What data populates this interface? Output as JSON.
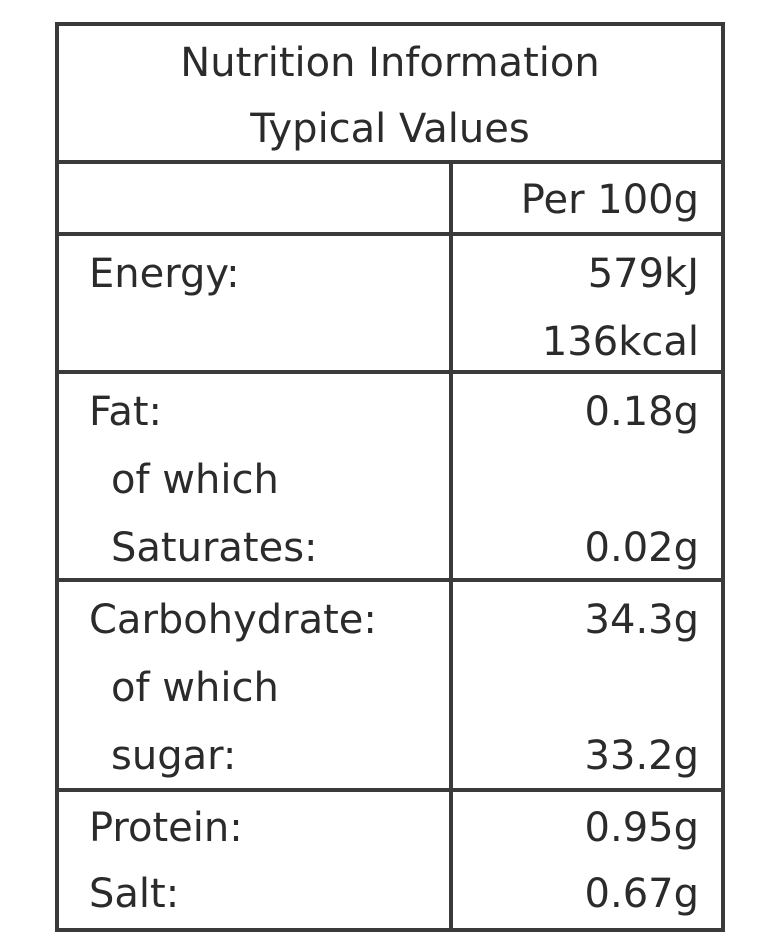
{
  "header": {
    "title": "Nutrition Information",
    "subtitle": "Typical Values"
  },
  "column_header": "Per 100g",
  "rows": {
    "energy": {
      "label": "Energy:",
      "value_kj": "579kJ",
      "value_kcal": "136kcal"
    },
    "fat": {
      "label": "Fat:",
      "value": "0.18g",
      "of_which": "of which",
      "sub_label": "Saturates:",
      "sub_value": "0.02g"
    },
    "carbohydrate": {
      "label": "Carbohydrate:",
      "value": "34.3g",
      "of_which": "of which",
      "sub_label": "sugar:",
      "sub_value": "33.2g"
    },
    "protein": {
      "label": "Protein:",
      "value": "0.95g"
    },
    "salt": {
      "label": "Salt:",
      "value": "0.67g"
    }
  }
}
